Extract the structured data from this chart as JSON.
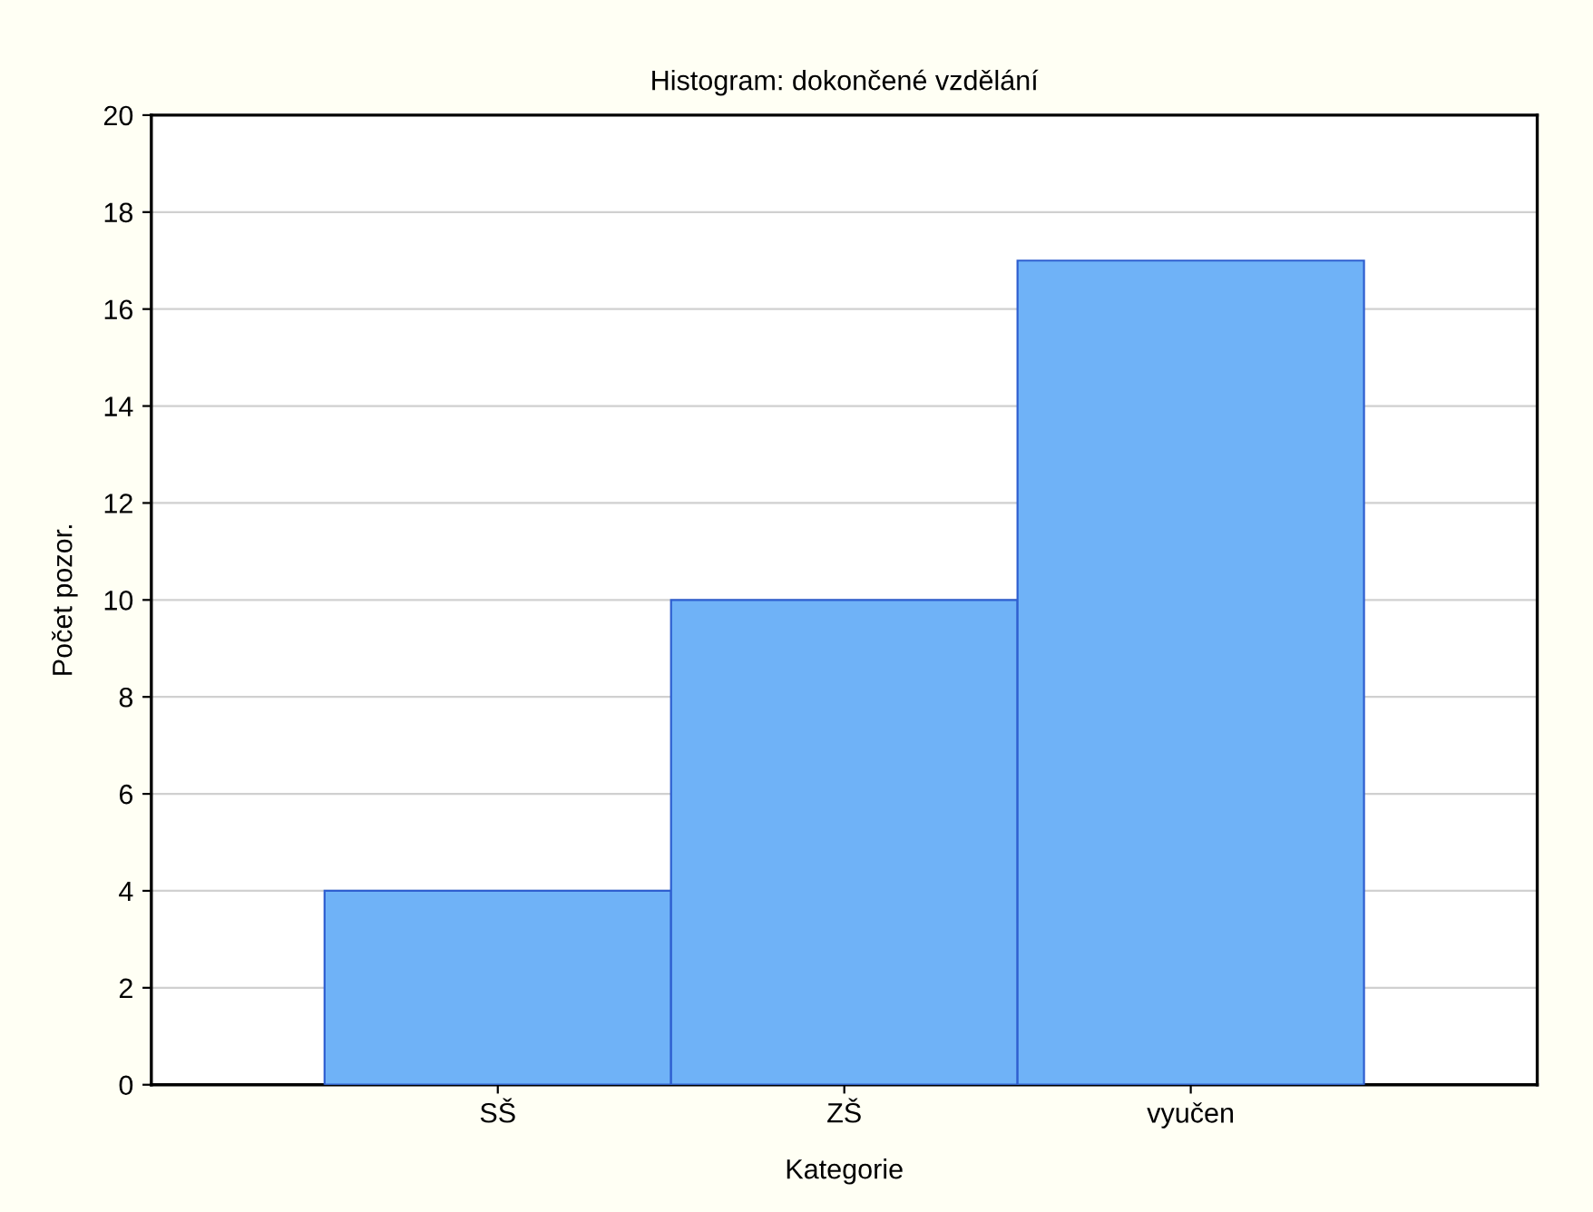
{
  "chart_data": {
    "type": "bar",
    "title": "Histogram: dokončené vzdělání",
    "xlabel": "Kategorie",
    "ylabel": "Počet pozor.",
    "categories": [
      "SŠ",
      "ZŠ",
      "vyučen"
    ],
    "values": [
      4,
      10,
      17
    ],
    "color": "#6fb2f7",
    "ylim": [
      0,
      20
    ],
    "yticks": [
      0,
      2,
      4,
      6,
      8,
      10,
      12,
      14,
      16,
      18,
      20
    ],
    "grid": "y"
  }
}
